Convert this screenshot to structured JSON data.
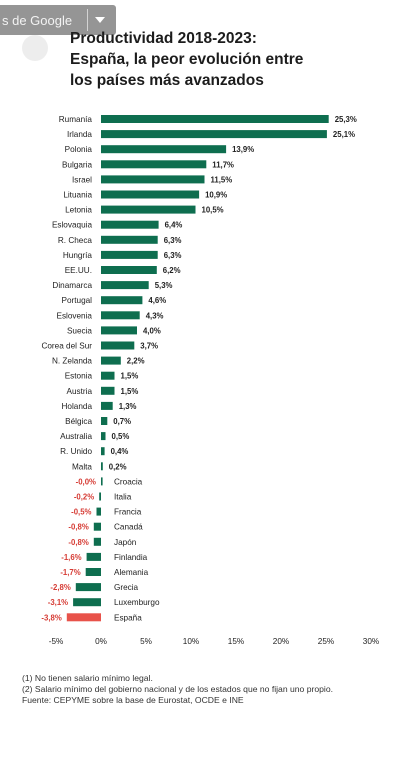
{
  "browser_overlay": {
    "label": "s de Google",
    "icon": "chevron-down-icon"
  },
  "chart_data": {
    "type": "bar",
    "orientation": "horizontal",
    "title_lines": [
      "Productividad 2018-2023:",
      "España, la peor evolución entre",
      "los países más avanzados"
    ],
    "categories": [
      "Rumanía",
      "Irlanda",
      "Polonia",
      "Bulgaria",
      "Israel",
      "Lituania",
      "Letonia",
      "Eslovaquia",
      "R. Checa",
      "Hungría",
      "EE.UU.",
      "Dinamarca",
      "Portugal",
      "Eslovenia",
      "Suecia",
      "Corea del Sur",
      "N. Zelanda",
      "Estonia",
      "Austria",
      "Holanda",
      "Bélgica",
      "Australia",
      "R. Unido",
      "Malta",
      "Croacia",
      "Italia",
      "Francia",
      "Canadá",
      "Japón",
      "Finlandia",
      "Alemania",
      "Grecia",
      "Luxemburgo",
      "España"
    ],
    "values": [
      25.3,
      25.1,
      13.9,
      11.7,
      11.5,
      10.9,
      10.5,
      6.4,
      6.3,
      6.3,
      6.2,
      5.3,
      4.6,
      4.3,
      4.0,
      3.7,
      2.2,
      1.5,
      1.5,
      1.3,
      0.7,
      0.5,
      0.4,
      0.2,
      -0.0,
      -0.2,
      -0.5,
      -0.8,
      -0.8,
      -1.6,
      -1.7,
      -2.8,
      -3.1,
      -3.8
    ],
    "value_labels": [
      "25,3%",
      "25,1%",
      "13,9%",
      "11,7%",
      "11,5%",
      "10,9%",
      "10,5%",
      "6,4%",
      "6,3%",
      "6,3%",
      "6,2%",
      "5,3%",
      "4,6%",
      "4,3%",
      "4,0%",
      "3,7%",
      "2,2%",
      "1,5%",
      "1,5%",
      "1,3%",
      "0,7%",
      "0,5%",
      "0,4%",
      "0,2%",
      "-0,0%",
      "-0,2%",
      "-0,5%",
      "-0,8%",
      "-0,8%",
      "-1,6%",
      "-1,7%",
      "-2,8%",
      "-3,1%",
      "-3,8%"
    ],
    "highlight_category": "España",
    "xlim": [
      -5,
      30
    ],
    "x_ticks": [
      -5,
      0,
      5,
      10,
      15,
      20,
      25,
      30
    ],
    "x_tick_labels": [
      "-5%",
      "0%",
      "5%",
      "10%",
      "15%",
      "20%",
      "25%",
      "30%"
    ],
    "grid": false,
    "colors": {
      "bar": "#0e6e4f",
      "highlight": "#e8524a",
      "negative_label": "#d63b34",
      "text": "#222222"
    }
  },
  "footnotes": [
    "(1) No tienen salario mínimo legal.",
    "(2) Salario mínimo del gobierno nacional y de los estados que no fijan uno propio.",
    "Fuente: CEPYME sobre la base de Eurostat, OCDE e INE"
  ]
}
